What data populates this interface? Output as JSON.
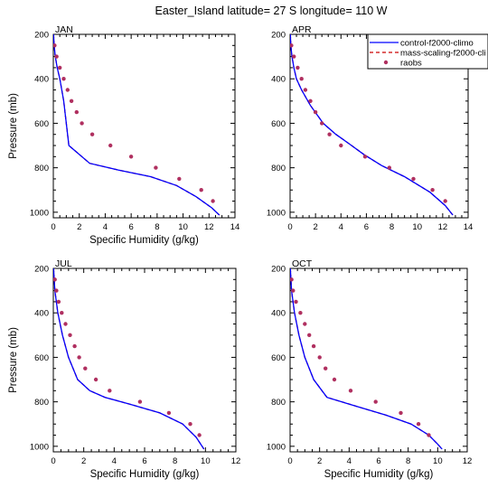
{
  "title": "Easter_Island  latitude= 27 S longitude= 110 W",
  "colors": {
    "control": "#0000ff",
    "mass": "#cc0000",
    "raobs": "#b03060"
  },
  "legend": {
    "items": [
      {
        "label": "control-f2000-climo",
        "style": "solid-line",
        "color": "#0000ff"
      },
      {
        "label": "mass-scaling-f2000-cli",
        "style": "dashed-line",
        "color": "#cc0000"
      },
      {
        "label": "raobs",
        "style": "marker",
        "color": "#b03060"
      }
    ]
  },
  "chart_data": [
    {
      "type": "line",
      "panel_label": "JAN",
      "xlabel": "Specific Humidity (g/kg)",
      "ylabel": "Pressure (mb)",
      "xlim": [
        0,
        14
      ],
      "ylim": [
        1025,
        200
      ],
      "y_inverted": true,
      "x_ticks": [
        0,
        2,
        4,
        6,
        8,
        10,
        12,
        14
      ],
      "y_ticks": [
        200,
        400,
        600,
        800,
        1000
      ],
      "series": [
        {
          "name": "control-f2000-climo",
          "x": [
            0.02,
            0.06,
            0.15,
            0.3,
            0.5,
            0.8,
            1.2,
            2.8,
            5.0,
            7.5,
            9.5,
            11.0,
            12.2,
            12.8
          ],
          "y": [
            200,
            250,
            300,
            350,
            400,
            500,
            700,
            780,
            810,
            840,
            880,
            930,
            980,
            1013
          ]
        },
        {
          "name": "mass-scaling-f2000-cli",
          "x": [
            0.02,
            0.06,
            0.15,
            0.3,
            0.5,
            0.8,
            1.2,
            2.8,
            5.0,
            7.5,
            9.5,
            11.0,
            12.2,
            12.8
          ],
          "y": [
            200,
            250,
            300,
            350,
            400,
            500,
            700,
            780,
            810,
            840,
            880,
            930,
            980,
            1013
          ]
        },
        {
          "name": "raobs",
          "x": [
            0.1,
            0.25,
            0.5,
            0.8,
            1.1,
            1.4,
            1.8,
            2.2,
            3.0,
            4.4,
            6.0,
            7.9,
            9.7,
            11.4,
            12.3
          ],
          "y": [
            250,
            300,
            350,
            400,
            450,
            500,
            550,
            600,
            650,
            700,
            750,
            800,
            850,
            900,
            950
          ]
        }
      ]
    },
    {
      "type": "line",
      "panel_label": "APR",
      "xlabel": "",
      "ylabel": "",
      "xlim": [
        0,
        14
      ],
      "ylim": [
        1025,
        200
      ],
      "y_inverted": true,
      "x_ticks": [
        0,
        2,
        4,
        6,
        8,
        10,
        12,
        14
      ],
      "y_ticks": [
        200,
        400,
        600,
        800,
        1000
      ],
      "series": [
        {
          "name": "control-f2000-climo",
          "x": [
            0.02,
            0.06,
            0.15,
            0.3,
            0.5,
            0.9,
            1.6,
            2.6,
            3.6,
            4.6,
            5.8,
            7.2,
            9.0,
            11.0,
            12.2,
            12.8
          ],
          "y": [
            200,
            250,
            300,
            350,
            400,
            450,
            520,
            600,
            650,
            690,
            740,
            790,
            840,
            910,
            970,
            1013
          ]
        },
        {
          "name": "mass-scaling-f2000-cli",
          "x": [
            0.02,
            0.06,
            0.15,
            0.3,
            0.5,
            0.9,
            1.6,
            2.6,
            3.6,
            4.6,
            5.8,
            7.2,
            9.0,
            11.0,
            12.2,
            12.8
          ],
          "y": [
            200,
            250,
            300,
            350,
            400,
            450,
            520,
            600,
            650,
            690,
            740,
            790,
            840,
            910,
            970,
            1013
          ]
        },
        {
          "name": "raobs",
          "x": [
            0.1,
            0.3,
            0.6,
            0.9,
            1.2,
            1.6,
            2.0,
            2.5,
            3.1,
            4.0,
            5.9,
            7.8,
            9.7,
            11.2,
            12.2
          ],
          "y": [
            250,
            300,
            350,
            400,
            450,
            500,
            550,
            600,
            650,
            700,
            750,
            800,
            850,
            900,
            950
          ]
        }
      ]
    },
    {
      "type": "line",
      "panel_label": "JUL",
      "xlabel": "Specific Humidity (g/kg)",
      "ylabel": "Pressure (mb)",
      "xlim": [
        0,
        12
      ],
      "ylim": [
        1025,
        200
      ],
      "y_inverted": true,
      "x_ticks": [
        0,
        2,
        4,
        6,
        8,
        10,
        12
      ],
      "y_ticks": [
        200,
        400,
        600,
        800,
        1000
      ],
      "series": [
        {
          "name": "control-f2000-climo",
          "x": [
            0.02,
            0.1,
            0.3,
            0.6,
            1.0,
            1.6,
            2.4,
            3.4,
            5.0,
            7.0,
            8.5,
            9.4,
            9.9
          ],
          "y": [
            200,
            300,
            400,
            500,
            600,
            700,
            750,
            780,
            810,
            850,
            900,
            960,
            1013
          ]
        },
        {
          "name": "mass-scaling-f2000-cli",
          "x": [
            0.02,
            0.1,
            0.3,
            0.6,
            1.0,
            1.6,
            2.4,
            3.4,
            5.0,
            7.0,
            8.5,
            9.4,
            9.9
          ],
          "y": [
            200,
            300,
            400,
            500,
            600,
            700,
            750,
            780,
            810,
            850,
            900,
            960,
            1013
          ]
        },
        {
          "name": "raobs",
          "x": [
            0.1,
            0.2,
            0.35,
            0.55,
            0.8,
            1.1,
            1.4,
            1.7,
            2.1,
            2.8,
            3.7,
            5.7,
            7.6,
            9.0,
            9.6
          ],
          "y": [
            250,
            300,
            350,
            400,
            450,
            500,
            550,
            600,
            650,
            700,
            750,
            800,
            850,
            900,
            950
          ]
        }
      ]
    },
    {
      "type": "line",
      "panel_label": "OCT",
      "xlabel": "Specific Humidity (g/kg)",
      "ylabel": "",
      "xlim": [
        0,
        12
      ],
      "ylim": [
        1025,
        200
      ],
      "y_inverted": true,
      "x_ticks": [
        0,
        2,
        4,
        6,
        8,
        10,
        12
      ],
      "y_ticks": [
        200,
        400,
        600,
        800,
        1000
      ],
      "series": [
        {
          "name": "control-f2000-climo",
          "x": [
            0.02,
            0.1,
            0.3,
            0.6,
            1.0,
            1.6,
            2.5,
            4.5,
            6.5,
            8.2,
            9.4,
            10.0,
            10.3
          ],
          "y": [
            200,
            300,
            400,
            500,
            600,
            700,
            780,
            820,
            860,
            900,
            950,
            990,
            1013
          ]
        },
        {
          "name": "mass-scaling-f2000-cli",
          "x": [
            0.02,
            0.1,
            0.3,
            0.6,
            1.0,
            1.6,
            2.5,
            4.5,
            6.5,
            8.2,
            9.4,
            10.0,
            10.3
          ],
          "y": [
            200,
            300,
            400,
            500,
            600,
            700,
            780,
            820,
            860,
            900,
            950,
            990,
            1013
          ]
        },
        {
          "name": "raobs",
          "x": [
            0.1,
            0.2,
            0.4,
            0.7,
            1.0,
            1.3,
            1.6,
            2.0,
            2.4,
            3.0,
            4.1,
            5.8,
            7.5,
            8.7,
            9.4
          ],
          "y": [
            250,
            300,
            350,
            400,
            450,
            500,
            550,
            600,
            650,
            700,
            750,
            800,
            850,
            900,
            950
          ]
        }
      ]
    }
  ]
}
